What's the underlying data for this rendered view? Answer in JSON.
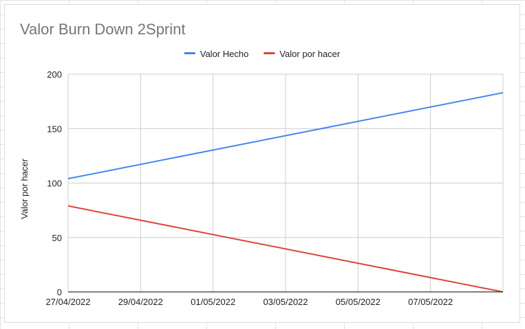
{
  "chart_data": {
    "type": "line",
    "title": "Valor Burn Down 2Sprint",
    "xlabel": "",
    "ylabel": "Valor por hacer",
    "x": [
      "27/04/2022",
      "09/05/2022"
    ],
    "x_tick_labels": [
      "27/04/2022",
      "29/04/2022",
      "01/05/2022",
      "03/05/2022",
      "05/05/2022",
      "07/05/2022"
    ],
    "xlim": [
      "27/04/2022",
      "09/05/2022"
    ],
    "ylim": [
      0,
      200
    ],
    "y_ticks": [
      0,
      50,
      100,
      150,
      200
    ],
    "grid": true,
    "legend_position": "top",
    "series": [
      {
        "name": "Valor Hecho",
        "color": "#4285f4",
        "values": [
          104,
          183
        ]
      },
      {
        "name": "Valor por hacer",
        "color": "#db4437",
        "values": [
          79,
          0
        ]
      }
    ]
  }
}
